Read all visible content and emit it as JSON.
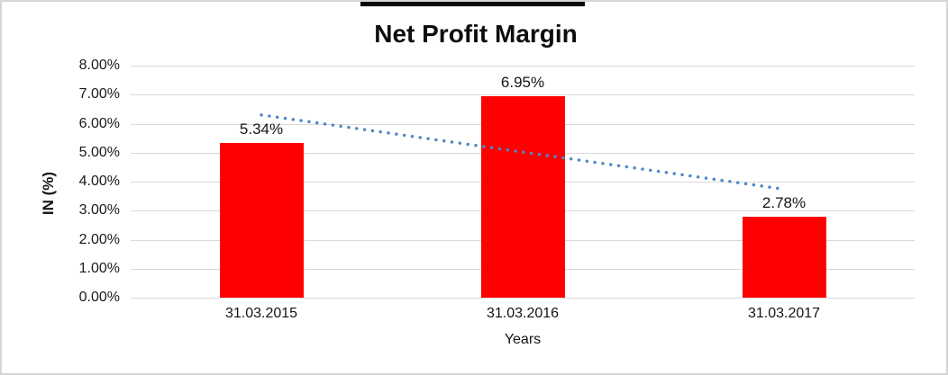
{
  "frame": {
    "border_color": "#d5d5d5",
    "top_accent_color": "#0a0a0a"
  },
  "chart_data": {
    "type": "bar",
    "title": "Net Profit Margin",
    "categories": [
      "31.03.2015",
      "31.03.2016",
      "31.03.2017"
    ],
    "values": [
      5.34,
      6.95,
      2.78
    ],
    "data_labels": [
      "5.34%",
      "6.95%",
      "2.78%"
    ],
    "xlabel": "Years",
    "ylabel": "IN (%)",
    "ylim": [
      0,
      8
    ],
    "ytick_step": 1,
    "ytick_labels_top_to_bottom": [
      "8.00%",
      "7.00%",
      "6.00%",
      "5.00%",
      "4.00%",
      "3.00%",
      "2.00%",
      "1.00%",
      "0.00%"
    ],
    "grid": true,
    "legend": false,
    "colors": {
      "bar": "#ff0000",
      "gridline": "#d9d9d9",
      "trendline": "#4f87c7",
      "text": "#141414"
    },
    "trendline": {
      "type": "linear",
      "line_style": "dotted",
      "fitted_endpoints_pct": [
        6.3,
        3.74
      ]
    }
  }
}
